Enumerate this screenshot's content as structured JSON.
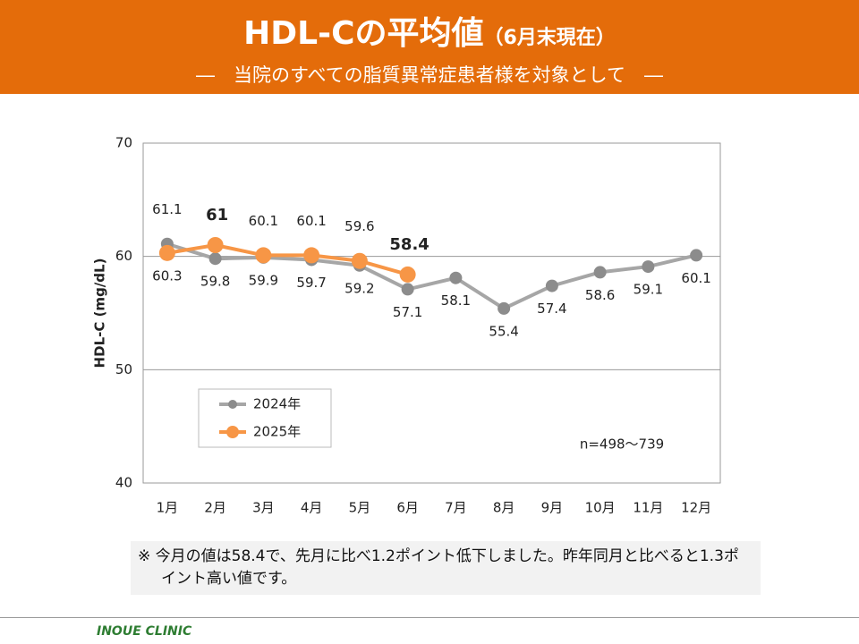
{
  "chart_data": {
    "type": "line",
    "title": "HDL-Cの平均値",
    "title_suffix": "（6月末現在）",
    "subtitle": "―　当院のすべての脂質異常症患者様を対象として　―",
    "y_label": "HDL-C (mg/dL)",
    "categories": [
      "1月",
      "2月",
      "3月",
      "4月",
      "5月",
      "6月",
      "7月",
      "8月",
      "9月",
      "10月",
      "11月",
      "12月"
    ],
    "series": [
      {
        "name": "2024年",
        "color": "#a6a6a6",
        "marker_color": "#8c8c8c",
        "values": [
          61.1,
          59.8,
          59.9,
          59.7,
          59.2,
          57.1,
          58.1,
          55.4,
          57.4,
          58.6,
          59.1,
          60.1
        ]
      },
      {
        "name": "2025年",
        "color": "#f79646",
        "marker_color": "#f79646",
        "values": [
          60.3,
          61.0,
          60.1,
          60.1,
          59.6,
          58.4,
          null,
          null,
          null,
          null,
          null,
          null
        ]
      }
    ],
    "ylim": [
      40,
      70
    ],
    "yticks": [
      40,
      50,
      60,
      70
    ],
    "grid": true,
    "highlight_color": "#e00000",
    "annotation": "n=498～739",
    "note": "※ 今月の値は58.4で、先月に比べ1.2ポイント低下しました。昨年同月と比べると1.3ポイント高い値です。",
    "footer": "INOUE CLINIC"
  }
}
